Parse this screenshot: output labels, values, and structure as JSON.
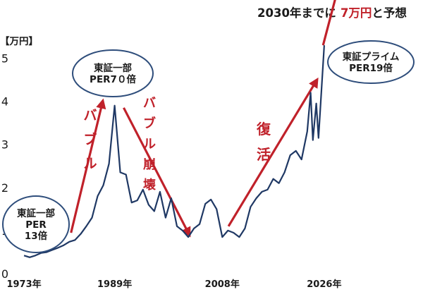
{
  "chart_data": {
    "type": "line",
    "title_prefix": "2030年までに",
    "title_highlight": "7万円",
    "title_suffix": "と予想",
    "y_unit": "【万円】",
    "y_ticks": [
      "0",
      "1",
      "2",
      "3",
      "4",
      "5"
    ],
    "ylim": [
      0,
      5.5
    ],
    "x_tick_labels": [
      "1973年",
      "1989年",
      "2008年",
      "2026年"
    ],
    "x_tick_values": [
      1973,
      1989,
      2008,
      2026
    ],
    "xlim": [
      1971,
      2030
    ],
    "series": [
      {
        "color": "#1f3864",
        "points": [
          [
            1973,
            0.42
          ],
          [
            1974,
            0.38
          ],
          [
            1975,
            0.42
          ],
          [
            1976,
            0.48
          ],
          [
            1977,
            0.5
          ],
          [
            1978,
            0.55
          ],
          [
            1979,
            0.6
          ],
          [
            1980,
            0.66
          ],
          [
            1981,
            0.74
          ],
          [
            1982,
            0.78
          ],
          [
            1983,
            0.92
          ],
          [
            1984,
            1.1
          ],
          [
            1985,
            1.3
          ],
          [
            1986,
            1.8
          ],
          [
            1987,
            2.05
          ],
          [
            1988,
            2.55
          ],
          [
            1989,
            3.9
          ],
          [
            1990,
            2.35
          ],
          [
            1991,
            2.3
          ],
          [
            1992,
            1.65
          ],
          [
            1993,
            1.7
          ],
          [
            1994,
            1.95
          ],
          [
            1995,
            1.6
          ],
          [
            1996,
            1.45
          ],
          [
            1997,
            1.9
          ],
          [
            1998,
            1.3
          ],
          [
            1999,
            1.75
          ],
          [
            2000,
            1.1
          ],
          [
            2001,
            1.0
          ],
          [
            2002,
            0.85
          ],
          [
            2003,
            1.05
          ],
          [
            2004,
            1.15
          ],
          [
            2005,
            1.62
          ],
          [
            2006,
            1.72
          ],
          [
            2007,
            1.5
          ],
          [
            2008,
            0.85
          ],
          [
            2009,
            1.0
          ],
          [
            2010,
            0.95
          ],
          [
            2011,
            0.85
          ],
          [
            2012,
            1.05
          ],
          [
            2013,
            1.55
          ],
          [
            2014,
            1.75
          ],
          [
            2015,
            1.9
          ],
          [
            2016,
            1.95
          ],
          [
            2017,
            2.2
          ],
          [
            2018,
            2.1
          ],
          [
            2019,
            2.35
          ],
          [
            2020,
            2.75
          ],
          [
            2021,
            2.85
          ],
          [
            2022,
            2.65
          ],
          [
            2023,
            3.3
          ],
          [
            2023.6,
            4.2
          ],
          [
            2024,
            3.1
          ],
          [
            2024.6,
            3.95
          ],
          [
            2025,
            3.15
          ],
          [
            2026,
            5.3
          ]
        ]
      }
    ],
    "annotations": {
      "start": [
        "東証一部",
        "PER",
        "13倍"
      ],
      "peak": [
        "東証一部",
        "PER7０倍"
      ],
      "prime": [
        "東証プライム",
        "PER19倍"
      ],
      "bubble": [
        "バ",
        "ブ",
        "ル"
      ],
      "collapse": [
        "バ",
        "ブ",
        "ル",
        "崩",
        "壊"
      ],
      "recovery": [
        "復",
        "活"
      ]
    },
    "colors": {
      "line": "#1f3864",
      "arrow": "#c0212a",
      "ellipse": "#2e4d7b",
      "text": "#1a1a1a",
      "highlight": "#c0212a"
    }
  }
}
